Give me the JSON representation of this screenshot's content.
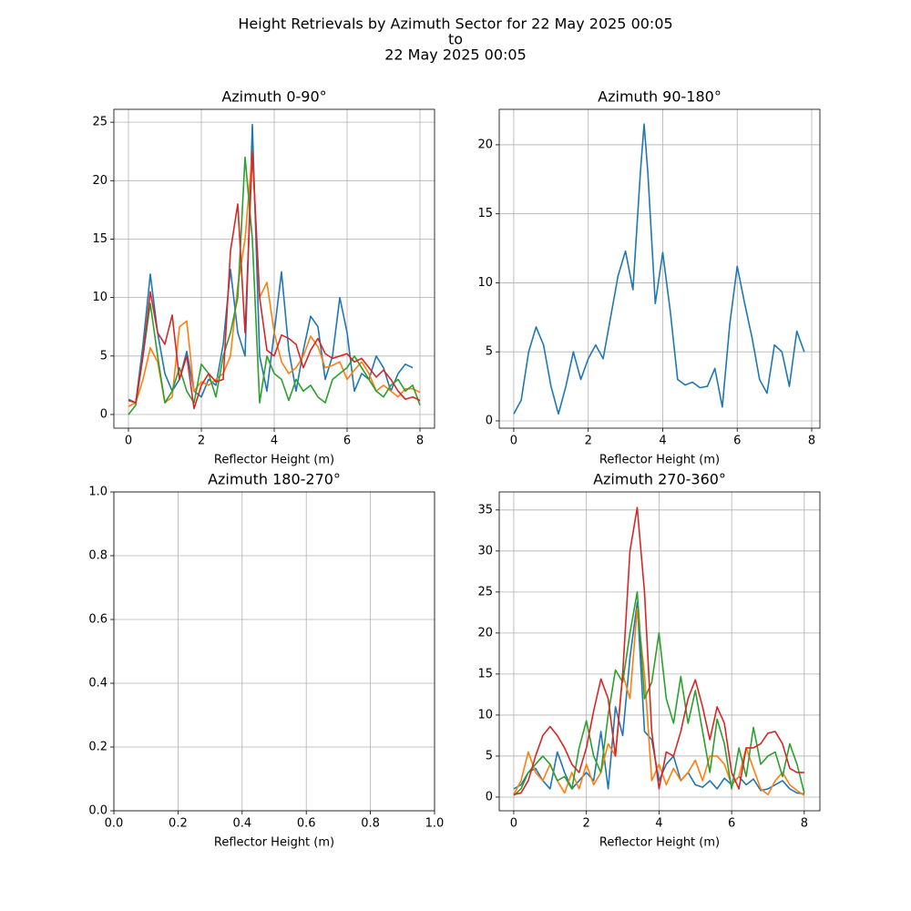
{
  "title": [
    "Height Retrievals by Azimuth Sector for 22 May 2025 00:05",
    "to",
    "22 May 2025 00:05"
  ],
  "chart_data": [
    {
      "type": "line",
      "title": "Azimuth 0-90°",
      "xlabel": "Reflector Height (m)",
      "grid": true,
      "xlim": [
        -0.4,
        8.4
      ],
      "ylim": [
        -1.17,
        26.1
      ],
      "xticks": [
        0,
        2,
        4,
        6,
        8
      ],
      "yticks": [
        0,
        5,
        10,
        15,
        20,
        25
      ],
      "x": [
        0,
        0.2,
        0.4,
        0.6,
        0.8,
        1.0,
        1.2,
        1.4,
        1.6,
        1.8,
        2.0,
        2.2,
        2.4,
        2.6,
        2.8,
        3.0,
        3.2,
        3.4,
        3.6,
        3.8,
        4.0,
        4.2,
        4.4,
        4.6,
        4.8,
        5.0,
        5.2,
        5.4,
        5.6,
        5.8,
        6.0,
        6.2,
        6.4,
        6.6,
        6.8,
        7.0,
        7.2,
        7.4,
        7.6,
        7.8,
        8.0
      ],
      "series": [
        {
          "color": "#1f77b4",
          "values": [
            1.3,
            1.0,
            6,
            12,
            7,
            3.5,
            2,
            3,
            5.4,
            2,
            1.5,
            3,
            2.5,
            6,
            12.4,
            7,
            5,
            24.8,
            5,
            2,
            7,
            12.2,
            5.5,
            2,
            5.5,
            8.4,
            7.5,
            3,
            5,
            10,
            7,
            2,
            3.5,
            3,
            5,
            4,
            2,
            3.5,
            4.3,
            4,
            null
          ]
        },
        {
          "color": "#ff7f0e",
          "values": [
            0.7,
            1,
            3,
            5.7,
            4.5,
            1,
            1.5,
            7.5,
            8,
            2,
            2.8,
            2.5,
            3,
            3.5,
            5,
            11,
            15,
            22.5,
            10,
            11.3,
            7,
            4.5,
            3.5,
            4,
            5,
            6.7,
            5.8,
            4,
            4.2,
            4.5,
            3,
            3.8,
            4.5,
            3.5,
            2,
            2.5,
            2,
            1.5,
            2.2,
            2.2,
            1.9
          ]
        },
        {
          "color": "#2ca02c",
          "values": [
            0,
            0.8,
            5,
            9.5,
            5,
            1,
            2,
            4,
            2,
            1,
            4.3,
            3.5,
            1.5,
            5,
            7,
            10,
            22,
            15,
            1,
            5,
            3.5,
            3,
            1.2,
            3,
            2,
            2.5,
            1.5,
            1,
            3,
            3.5,
            4,
            5,
            4,
            3,
            2,
            1.5,
            2.5,
            3,
            2,
            2.5,
            0.8
          ]
        },
        {
          "color": "#d62728",
          "values": [
            1.2,
            1,
            5,
            10.5,
            7,
            6,
            8.5,
            3,
            5,
            0.5,
            2.5,
            3.5,
            2.8,
            3,
            14,
            18,
            7,
            22.5,
            10,
            5.5,
            5,
            6.8,
            6.5,
            6,
            4,
            5.5,
            6.5,
            5.2,
            4.8,
            5,
            5.2,
            4.5,
            4.8,
            4,
            3.2,
            3.8,
            3,
            2,
            1.3,
            1.5,
            1.2
          ]
        }
      ]
    },
    {
      "type": "line",
      "title": "Azimuth 90-180°",
      "xlabel": "Reflector Height (m)",
      "grid": true,
      "xlim": [
        -0.39,
        8.22
      ],
      "ylim": [
        -0.53,
        22.57
      ],
      "xticks": [
        0,
        2,
        4,
        6,
        8
      ],
      "yticks": [
        0,
        5,
        10,
        15,
        20
      ],
      "x": [
        0,
        0.2,
        0.4,
        0.6,
        0.8,
        1.0,
        1.2,
        1.4,
        1.6,
        1.8,
        2.0,
        2.2,
        2.4,
        2.6,
        2.8,
        3.0,
        3.2,
        3.4,
        3.5,
        3.6,
        3.8,
        4.0,
        4.2,
        4.4,
        4.6,
        4.8,
        5.0,
        5.2,
        5.4,
        5.6,
        5.8,
        6.0,
        6.2,
        6.4,
        6.6,
        6.8,
        7.0,
        7.2,
        7.4,
        7.6,
        7.8
      ],
      "series": [
        {
          "color": "#1f77b4",
          "values": [
            0.5,
            1.5,
            5,
            6.8,
            5.5,
            2.5,
            0.5,
            2.5,
            5,
            3,
            4.5,
            5.5,
            4.5,
            7.5,
            10.5,
            12.3,
            9.5,
            18,
            21.5,
            18,
            8.5,
            12.2,
            8,
            3,
            2.6,
            2.8,
            2.4,
            2.5,
            3.8,
            1,
            7,
            11.2,
            8.5,
            6,
            3,
            2,
            5.5,
            5,
            2.5,
            6.5,
            5
          ]
        }
      ]
    },
    {
      "type": "line",
      "title": "Azimuth 180-270°",
      "xlabel": "Reflector Height (m)",
      "grid": true,
      "xlim": [
        0,
        1
      ],
      "ylim": [
        0,
        1
      ],
      "xticks": [
        {
          "value": 0,
          "label": "0.0"
        },
        {
          "value": 0.2,
          "label": "0.2"
        },
        {
          "value": 0.4,
          "label": "0.4"
        },
        {
          "value": 0.6,
          "label": "0.6"
        },
        {
          "value": 0.8,
          "label": "0.8"
        },
        {
          "value": 1,
          "label": "1.0"
        }
      ],
      "yticks": [
        {
          "value": 0,
          "label": "0.0"
        },
        {
          "value": 0.2,
          "label": "0.2"
        },
        {
          "value": 0.4,
          "label": "0.4"
        },
        {
          "value": 0.6,
          "label": "0.6"
        },
        {
          "value": 0.8,
          "label": "0.8"
        },
        {
          "value": 1,
          "label": "1.0"
        }
      ],
      "x": [],
      "series": []
    },
    {
      "type": "line",
      "title": "Azimuth 270-360°",
      "xlabel": "Reflector Height (m)",
      "grid": true,
      "xlim": [
        -0.4,
        8.43
      ],
      "ylim": [
        -1.67,
        37.2
      ],
      "xticks": [
        0,
        2,
        4,
        6,
        8
      ],
      "yticks": [
        0,
        5,
        10,
        15,
        20,
        25,
        30,
        35
      ],
      "x": [
        0,
        0.2,
        0.4,
        0.6,
        0.8,
        1.0,
        1.2,
        1.4,
        1.6,
        1.8,
        2.0,
        2.2,
        2.4,
        2.6,
        2.8,
        3.0,
        3.2,
        3.4,
        3.6,
        3.8,
        4.0,
        4.2,
        4.4,
        4.6,
        4.8,
        5.0,
        5.2,
        5.4,
        5.6,
        5.8,
        6.0,
        6.2,
        6.4,
        6.6,
        6.8,
        7.0,
        7.2,
        7.4,
        7.6,
        7.8,
        8.0
      ],
      "series": [
        {
          "color": "#1f77b4",
          "values": [
            1,
            1.5,
            3,
            3.5,
            2,
            1,
            5.5,
            3,
            1,
            2,
            3,
            2,
            8,
            1,
            11,
            7.5,
            17,
            23.7,
            8,
            7,
            2,
            4,
            5,
            2,
            3,
            1.5,
            1.2,
            2,
            1,
            2.3,
            1.5,
            2.5,
            1.5,
            2.2,
            0.8,
            1,
            1.5,
            2,
            1,
            0.5,
            0.4
          ]
        },
        {
          "color": "#ff7f0e",
          "values": [
            0.3,
            2,
            5.5,
            3,
            2,
            4,
            2,
            0.5,
            3,
            1,
            4,
            1.5,
            3,
            6.5,
            5,
            15,
            12,
            23,
            15,
            2,
            4,
            1.5,
            3.5,
            2,
            3,
            4.5,
            2,
            5,
            5,
            4,
            1.5,
            2.5,
            6,
            3.5,
            1,
            0.3,
            2,
            3,
            1.5,
            0.8,
            0.2
          ]
        },
        {
          "color": "#2ca02c",
          "values": [
            0.2,
            1,
            3,
            4,
            5,
            4,
            2,
            2.5,
            1,
            6,
            9.3,
            5,
            3,
            10,
            15.5,
            14,
            20,
            25,
            12,
            14,
            20,
            12,
            9,
            14.7,
            9,
            13,
            8,
            3,
            9.5,
            6.5,
            1,
            6,
            2.5,
            8.5,
            4,
            5,
            5.5,
            2.5,
            6.5,
            4,
            0.5
          ]
        },
        {
          "color": "#d62728",
          "values": [
            0.3,
            0.5,
            2,
            5,
            7.5,
            8.6,
            7.5,
            6,
            4,
            3,
            6,
            10.5,
            14.4,
            12,
            5,
            15,
            30,
            35.3,
            25,
            8,
            1,
            5.5,
            5,
            8,
            12,
            14.3,
            11,
            7,
            11,
            9,
            3,
            1,
            6,
            6,
            6.5,
            7.8,
            8,
            6.5,
            3.5,
            3,
            3
          ]
        }
      ]
    }
  ]
}
